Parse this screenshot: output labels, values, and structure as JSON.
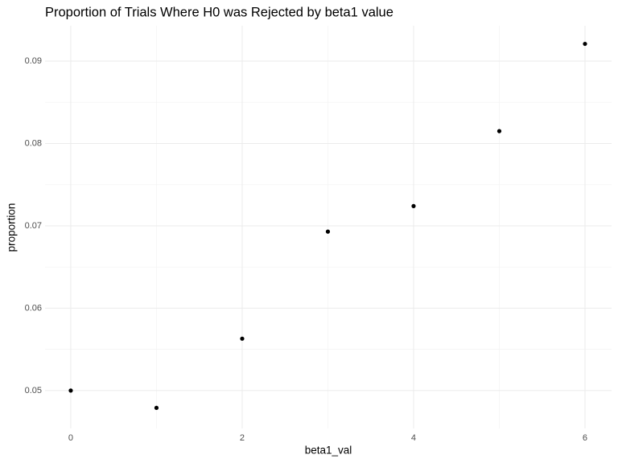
{
  "chart_data": {
    "type": "scatter",
    "title": "Proportion of Trials Where H0 was Rejected by beta1 value",
    "x_label": "beta1_val",
    "y_label": "proportion",
    "x": [
      0,
      1,
      2,
      3,
      4,
      5,
      6
    ],
    "values": [
      0.05,
      0.0479,
      0.0563,
      0.0693,
      0.0724,
      0.0815,
      0.0921
    ],
    "color": "#000000",
    "xlim": [
      -0.3,
      6.31
    ],
    "ylim": [
      0.0454,
      0.0943
    ],
    "xticks": [
      0,
      2,
      4,
      6
    ],
    "yticks": [
      0.05,
      0.06,
      0.07,
      0.08,
      0.09
    ],
    "grid": true
  }
}
